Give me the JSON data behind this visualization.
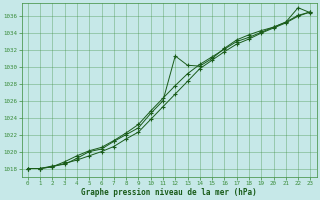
{
  "xlabel": "Graphe pression niveau de la mer (hPa)",
  "bg_color": "#c6e8e8",
  "grid_color": "#3a8c3a",
  "line_color": "#1a5c1a",
  "xlim": [
    -0.5,
    23.5
  ],
  "ylim": [
    1017.0,
    1037.5
  ],
  "yticks": [
    1018,
    1020,
    1022,
    1024,
    1026,
    1028,
    1030,
    1032,
    1034,
    1036
  ],
  "xticks": [
    0,
    1,
    2,
    3,
    4,
    5,
    6,
    7,
    8,
    9,
    10,
    11,
    12,
    13,
    14,
    15,
    16,
    17,
    18,
    19,
    20,
    21,
    22,
    23
  ],
  "series1": [
    1018.0,
    1018.0,
    1018.3,
    1018.5,
    1019.2,
    1020.0,
    1020.3,
    1021.2,
    1022.0,
    1022.8,
    1024.5,
    1026.0,
    1031.3,
    1030.2,
    1030.1,
    1031.0,
    1032.2,
    1033.2,
    1033.8,
    1034.3,
    1034.7,
    1035.3,
    1037.0,
    1036.4
  ],
  "series2": [
    1018.0,
    1018.0,
    1018.2,
    1018.8,
    1019.5,
    1020.1,
    1020.5,
    1021.3,
    1022.2,
    1023.2,
    1024.8,
    1026.3,
    1027.8,
    1029.2,
    1030.3,
    1031.2,
    1032.1,
    1033.0,
    1033.5,
    1034.1,
    1034.7,
    1035.3,
    1036.1,
    1036.5
  ],
  "series3": [
    1018.0,
    1018.0,
    1018.2,
    1018.6,
    1019.0,
    1019.5,
    1020.0,
    1020.6,
    1021.5,
    1022.3,
    1023.8,
    1025.3,
    1026.8,
    1028.3,
    1029.8,
    1030.8,
    1031.8,
    1032.7,
    1033.3,
    1034.0,
    1034.6,
    1035.2,
    1036.0,
    1036.5
  ]
}
